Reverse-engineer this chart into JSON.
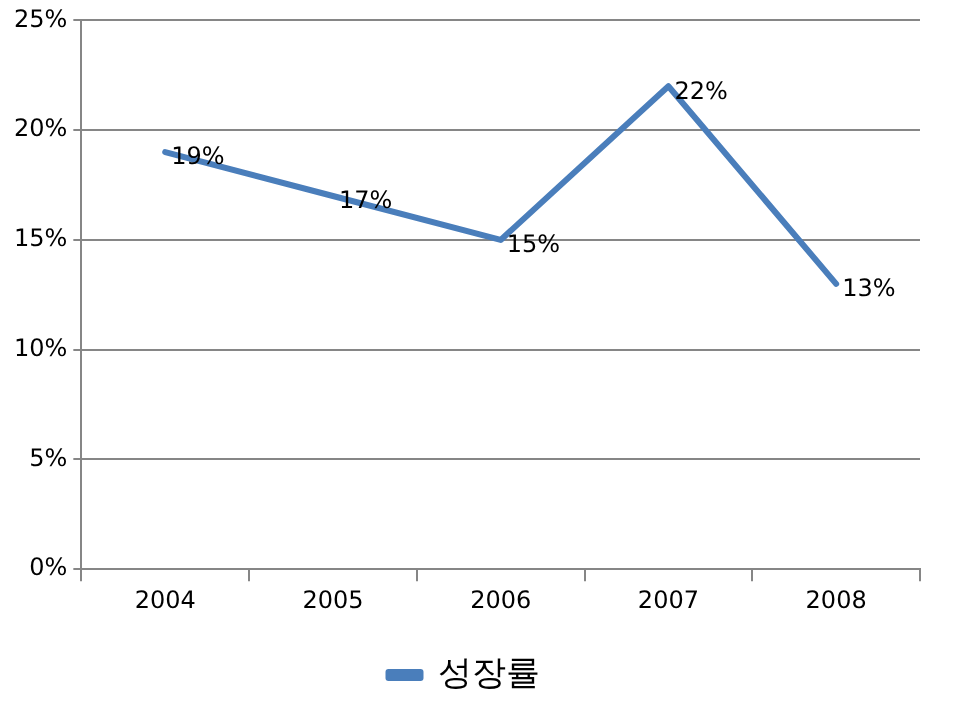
{
  "chart_data": {
    "type": "line",
    "categories": [
      "2004",
      "2005",
      "2006",
      "2007",
      "2008"
    ],
    "series": [
      {
        "name": "성장률",
        "color": "#4a7ebb",
        "values": [
          19,
          17,
          15,
          22,
          13
        ],
        "value_labels": [
          "19%",
          "17%",
          "15%",
          "22%",
          "13%"
        ]
      }
    ],
    "ylim": [
      0,
      25
    ],
    "yticks": [
      {
        "value": 0,
        "label": "0%"
      },
      {
        "value": 5,
        "label": "5%"
      },
      {
        "value": 10,
        "label": "10%"
      },
      {
        "value": 15,
        "label": "15%"
      },
      {
        "value": 20,
        "label": "20%"
      },
      {
        "value": 25,
        "label": "25%"
      }
    ],
    "grid": "y",
    "legend": "bottom",
    "marker": "none",
    "line_style": "solid"
  }
}
